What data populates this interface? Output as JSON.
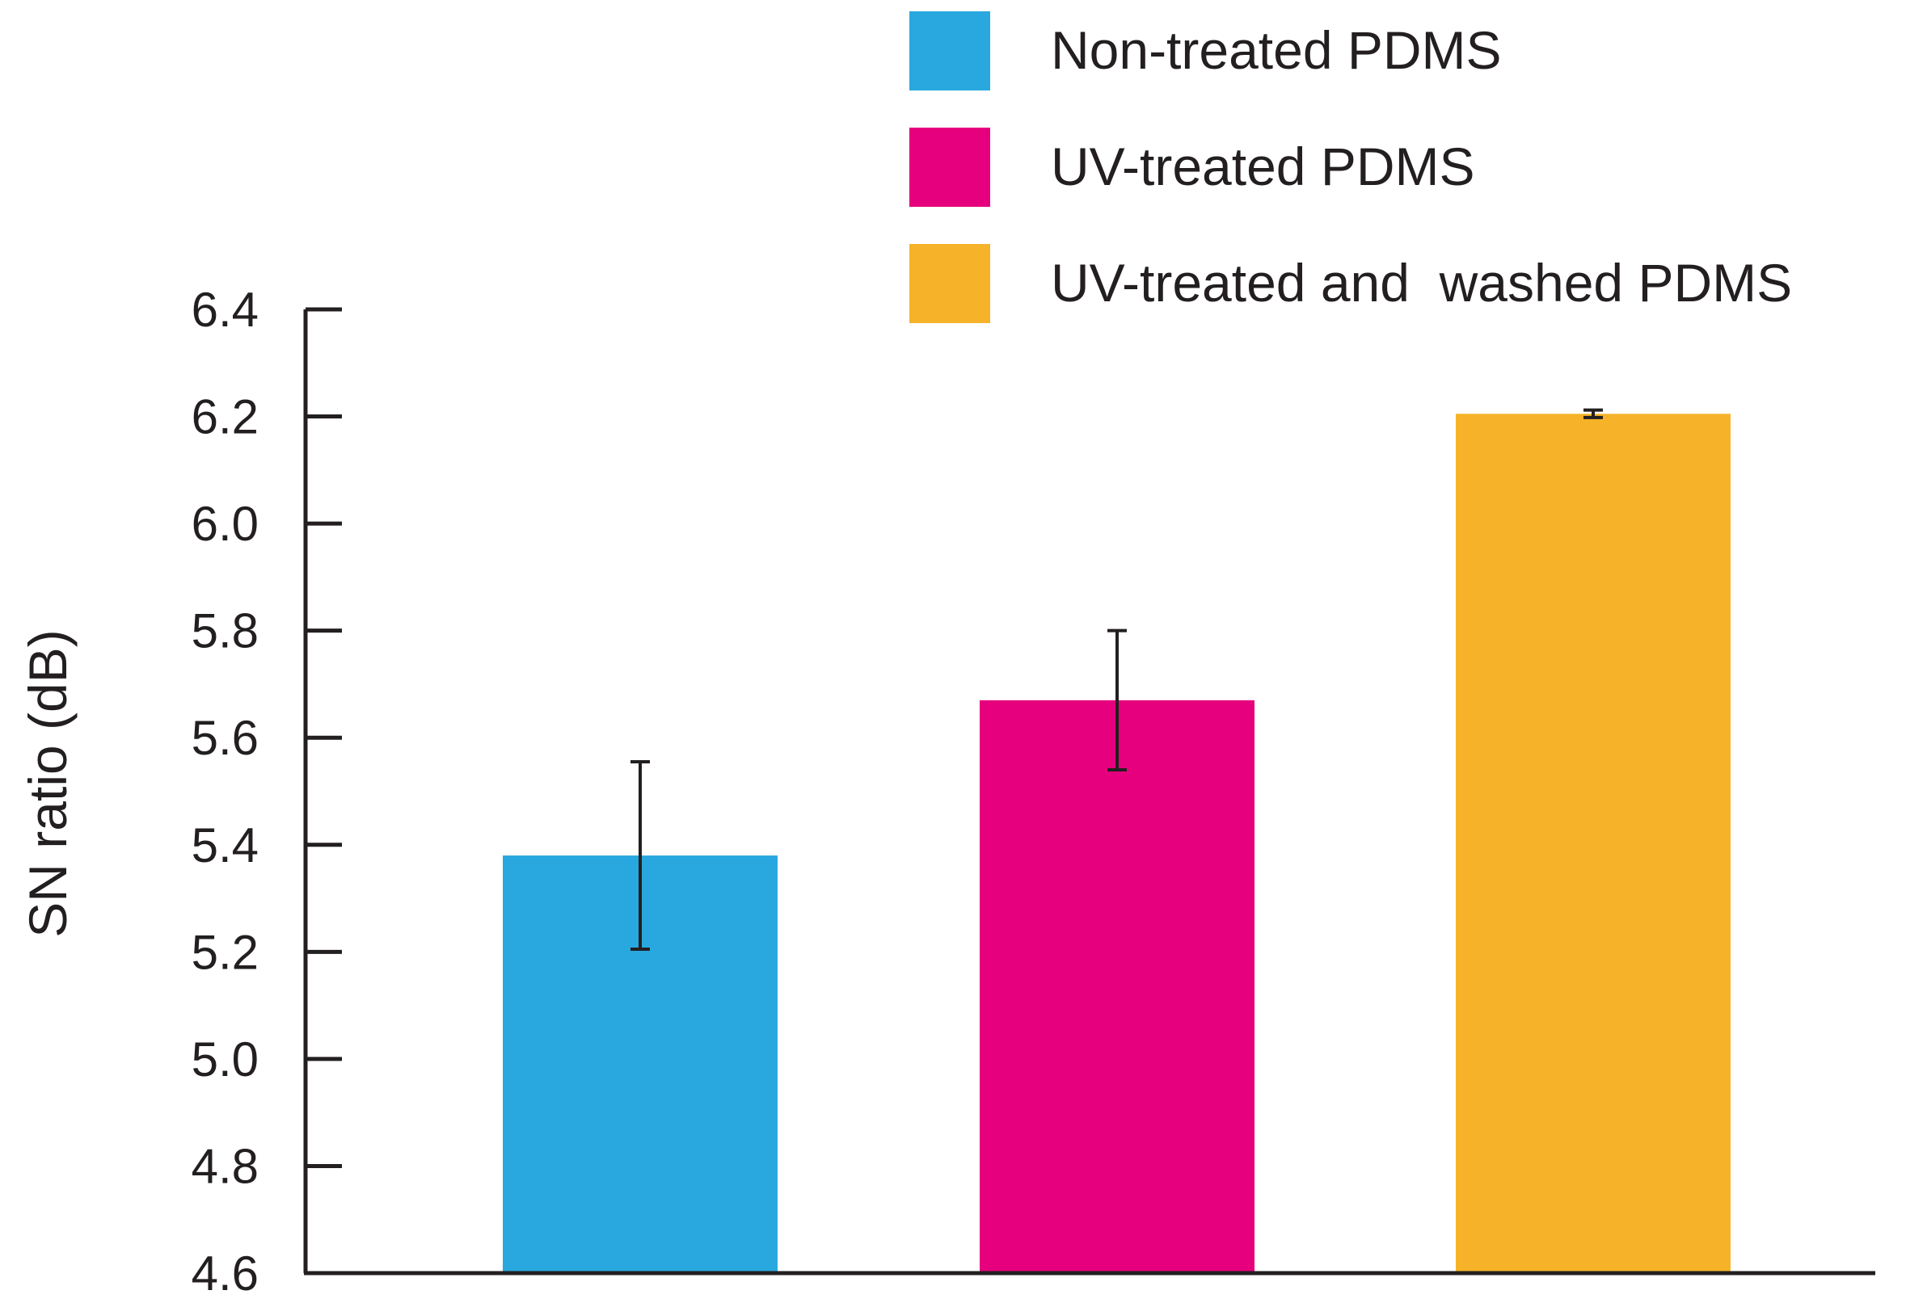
{
  "chart_data": {
    "type": "bar",
    "title": "",
    "xlabel": "",
    "ylabel": "SN ratio (dB)",
    "ylim": [
      4.6,
      6.4
    ],
    "yticks": [
      "4.6",
      "4.8",
      "5.0",
      "5.2",
      "5.4",
      "5.6",
      "5.8",
      "6.0",
      "6.2",
      "6.4"
    ],
    "grid": false,
    "legend_position": "top-right",
    "series": [
      {
        "name": "Non-treated PDMS",
        "value": 5.38,
        "error": 0.175,
        "color": "#29a8e0"
      },
      {
        "name": "UV-treated PDMS",
        "value": 5.67,
        "error": 0.13,
        "color": "#e6007e"
      },
      {
        "name": "UV-treated and  washed PDMS",
        "value": 6.205,
        "error": 0.007,
        "color": "#f6b329"
      }
    ]
  }
}
